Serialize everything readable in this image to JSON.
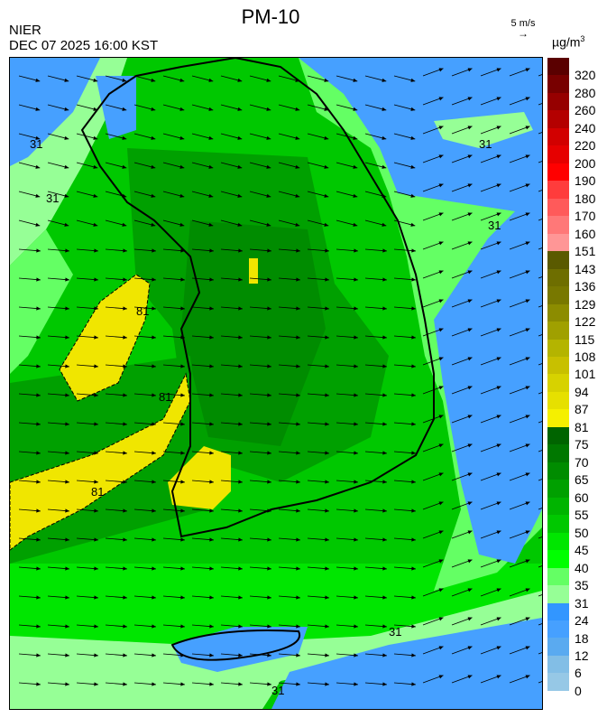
{
  "header": {
    "title": "PM-10",
    "org": "NIER",
    "datetime": "DEC 07 2025 16:00 KST"
  },
  "wind_scale": {
    "label": "5 m/s"
  },
  "colorbar": {
    "unit": "µg/m",
    "unit_sup": "3",
    "labels": [
      "320",
      "280",
      "260",
      "240",
      "220",
      "200",
      "190",
      "180",
      "170",
      "160",
      "151",
      "143",
      "136",
      "129",
      "122",
      "115",
      "108",
      "101",
      "94",
      "87",
      "81",
      "75",
      "70",
      "65",
      "60",
      "55",
      "50",
      "45",
      "40",
      "35",
      "31",
      "24",
      "18",
      "12",
      "6",
      "0"
    ],
    "colors": [
      "#5a0000",
      "#780000",
      "#960000",
      "#b40000",
      "#d20000",
      "#e60000",
      "#ff0000",
      "#ff3c3c",
      "#ff5a5a",
      "#ff7878",
      "#ff9696",
      "#5a5a00",
      "#6e6e00",
      "#787800",
      "#8c8c00",
      "#a0a000",
      "#b4b400",
      "#c8c000",
      "#d7d200",
      "#e6e000",
      "#f5f000",
      "#006400",
      "#007800",
      "#008c00",
      "#00a000",
      "#00b400",
      "#00c800",
      "#00e600",
      "#00ff00",
      "#64ff64",
      "#96ff96",
      "#3296ff",
      "#46a0ff",
      "#5aaaf0",
      "#82bee6",
      "#96c8e6"
    ]
  },
  "map": {
    "contour_labels": [
      "31",
      "31",
      "31",
      "31",
      "81",
      "81",
      "81",
      "31",
      "31"
    ],
    "colors": {
      "sea_blue": "#46a0ff",
      "light_green": "#96ff96",
      "mid_green": "#64ff64",
      "green": "#00e600",
      "dark_green": "#00a000",
      "darker_green": "#008c00",
      "land": "#007800",
      "yellow": "#f0e600"
    }
  }
}
